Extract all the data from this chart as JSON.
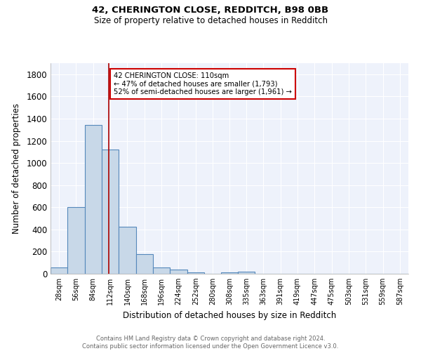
{
  "title1": "42, CHERINGTON CLOSE, REDDITCH, B98 0BB",
  "title2": "Size of property relative to detached houses in Redditch",
  "xlabel": "Distribution of detached houses by size in Redditch",
  "ylabel": "Number of detached properties",
  "bin_labels": [
    "28sqm",
    "56sqm",
    "84sqm",
    "112sqm",
    "140sqm",
    "168sqm",
    "196sqm",
    "224sqm",
    "252sqm",
    "280sqm",
    "308sqm",
    "335sqm",
    "363sqm",
    "391sqm",
    "419sqm",
    "447sqm",
    "475sqm",
    "503sqm",
    "531sqm",
    "559sqm",
    "587sqm"
  ],
  "bin_edges": [
    14,
    42,
    70,
    98,
    126,
    154,
    182,
    210,
    238,
    266,
    294,
    321.5,
    349,
    377,
    405,
    433,
    461,
    489,
    517,
    545,
    573,
    601
  ],
  "bar_values": [
    60,
    600,
    1340,
    1120,
    425,
    175,
    60,
    35,
    15,
    0,
    15,
    20,
    0,
    0,
    0,
    0,
    0,
    0,
    0,
    0,
    0
  ],
  "bar_color": "#c8d8e8",
  "bar_edge_color": "#5588bb",
  "vline_x": 110,
  "vline_color": "#aa0000",
  "annotation_text": "42 CHERINGTON CLOSE: 110sqm\n← 47% of detached houses are smaller (1,793)\n52% of semi-detached houses are larger (1,961) →",
  "annotation_box_color": "#ffffff",
  "annotation_box_edge": "#cc0000",
  "ylim": [
    0,
    1900
  ],
  "yticks": [
    0,
    200,
    400,
    600,
    800,
    1000,
    1200,
    1400,
    1600,
    1800
  ],
  "background_color": "#eef2fb",
  "grid_color": "#ffffff",
  "footer_line1": "Contains HM Land Registry data © Crown copyright and database right 2024.",
  "footer_line2": "Contains public sector information licensed under the Open Government Licence v3.0."
}
